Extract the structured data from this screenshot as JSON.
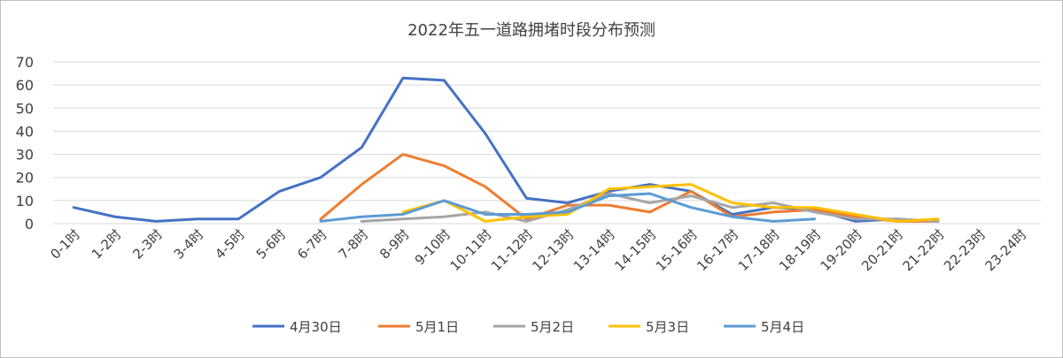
{
  "chart_data": {
    "type": "line",
    "title": "2022年五一道路拥堵时段分布预测",
    "xlabel": "",
    "ylabel": "",
    "ylim": [
      0,
      70
    ],
    "yticks": [
      "0",
      "10",
      "20",
      "30",
      "40",
      "50",
      "60",
      "70"
    ],
    "grid": true,
    "legend_position": "bottom",
    "categories": [
      "0-1时",
      "1-2时",
      "2-3时",
      "3-4时",
      "4-5时",
      "5-6时",
      "6-7时",
      "7-8时",
      "8-9时",
      "9-10时",
      "10-11时",
      "11-12时",
      "12-13时",
      "13-14时",
      "14-15时",
      "15-16时",
      "16-17时",
      "17-18时",
      "18-19时",
      "19-20时",
      "20-21时",
      "21-22时",
      "22-23时",
      "23-24时"
    ],
    "series": [
      {
        "name": "4月30日",
        "color": "#4472c4",
        "values": [
          7,
          3,
          1,
          2,
          2,
          14,
          20,
          33,
          63,
          62,
          39,
          11,
          9,
          14,
          17,
          14,
          4,
          7,
          6,
          1,
          2,
          1,
          null,
          null
        ]
      },
      {
        "name": "5月1日",
        "color": "#ed7d31",
        "values": [
          null,
          null,
          null,
          null,
          null,
          null,
          2,
          17,
          30,
          25,
          16,
          2,
          8,
          8,
          5,
          14,
          3,
          5,
          6,
          3,
          1,
          1,
          null,
          null
        ]
      },
      {
        "name": "5月2日",
        "color": "#a5a5a5",
        "values": [
          null,
          null,
          null,
          null,
          null,
          null,
          null,
          1,
          2,
          3,
          5,
          1,
          6,
          13,
          9,
          12,
          7,
          9,
          5,
          2,
          2,
          1,
          null,
          null
        ]
      },
      {
        "name": "5月3日",
        "color": "#ffc000",
        "values": [
          null,
          null,
          null,
          null,
          null,
          null,
          null,
          null,
          5,
          10,
          1,
          3,
          4,
          15,
          16,
          17,
          9,
          7,
          7,
          4,
          1,
          2,
          null,
          null
        ]
      },
      {
        "name": "5月4日",
        "color": "#5b9bd5",
        "values": [
          null,
          null,
          null,
          null,
          null,
          null,
          1,
          3,
          4,
          10,
          4,
          4,
          5,
          12,
          13,
          7,
          3,
          1,
          2,
          null,
          null,
          null,
          null,
          null
        ]
      }
    ]
  }
}
